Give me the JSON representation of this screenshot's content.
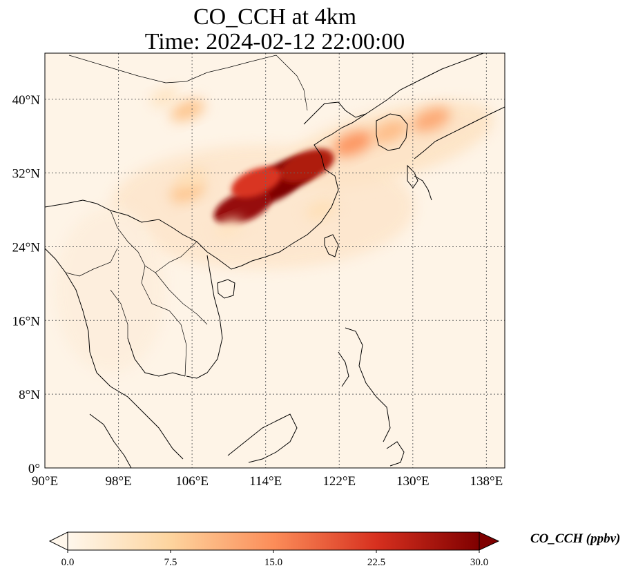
{
  "title": {
    "line1": "CO_CCH at 4km",
    "line2": "Time: 2024-02-12 22:00:00"
  },
  "map": {
    "projection": "PlateCarree",
    "lon_range": [
      90,
      140
    ],
    "lat_range": [
      0,
      45
    ],
    "gridlines": "dotted",
    "x_ticks": [
      "90°E",
      "98°E",
      "106°E",
      "114°E",
      "122°E",
      "130°E",
      "138°E"
    ],
    "y_ticks": [
      "0°",
      "8°N",
      "16°N",
      "24°N",
      "32°N",
      "40°N"
    ]
  },
  "colorbar": {
    "label": "CO_CCH (ppbv)",
    "cmap": "OrRd",
    "range": [
      0.0,
      30.0
    ],
    "extend": "both",
    "ticks": [
      "0.0",
      "7.5",
      "15.0",
      "22.5",
      "30.0"
    ]
  },
  "plumes": [
    {
      "lon": 116.5,
      "lat": 31.8,
      "value": 30
    },
    {
      "lon": 114.5,
      "lat": 30.5,
      "value": 30
    },
    {
      "lon": 111.5,
      "lat": 28.3,
      "value": 28
    },
    {
      "lon": 118.5,
      "lat": 32.8,
      "value": 26
    },
    {
      "lon": 113.0,
      "lat": 31.0,
      "value": 22
    },
    {
      "lon": 123.5,
      "lat": 35.2,
      "value": 14
    },
    {
      "lon": 127.5,
      "lat": 36.5,
      "value": 10
    },
    {
      "lon": 132.0,
      "lat": 37.8,
      "value": 12
    },
    {
      "lon": 105.5,
      "lat": 38.8,
      "value": 9
    },
    {
      "lon": 105.5,
      "lat": 30.0,
      "value": 9
    },
    {
      "lon": 106.0,
      "lat": 31.5,
      "value": 5
    },
    {
      "lon": 103.0,
      "lat": 40.2,
      "value": 4
    },
    {
      "lon": 120.0,
      "lat": 28.0,
      "value": 5
    },
    {
      "lon": 110.0,
      "lat": 26.0,
      "value": 4
    }
  ]
}
